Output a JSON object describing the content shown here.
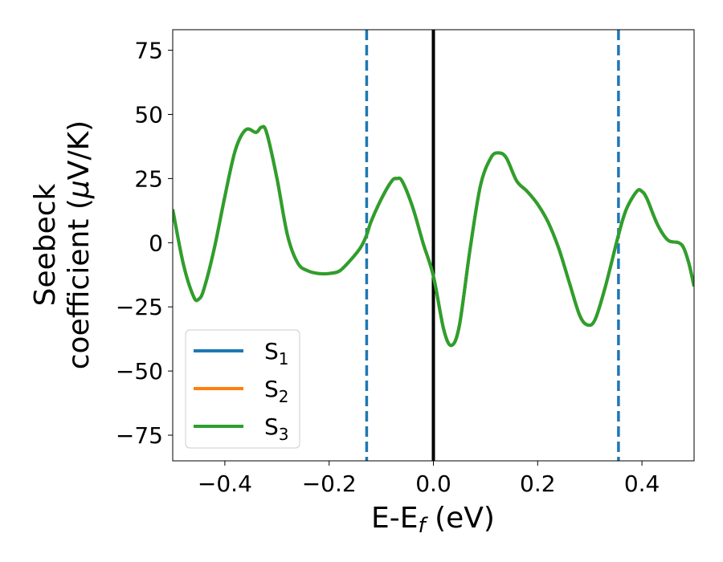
{
  "chart_data": {
    "type": "line",
    "xlabel_main": "E-E",
    "xlabel_sub": "f",
    "xlabel_tail": " (eV)",
    "ylabel_line1": "Seebeck",
    "ylabel_line2": "coefficient  (",
    "ylabel_mu": "μ",
    "ylabel_tail": "V/K)",
    "xlim": [
      -0.5,
      0.5
    ],
    "ylim": [
      -85,
      83
    ],
    "xticks": [
      -0.4,
      -0.2,
      0.0,
      0.2,
      0.4
    ],
    "xtick_labels": [
      "−0.4",
      "−0.2",
      "0.0",
      "0.2",
      "0.4"
    ],
    "yticks": [
      75,
      50,
      25,
      0,
      -25,
      -50,
      -75
    ],
    "ytick_labels": [
      "75",
      "50",
      "25",
      "0",
      "−25",
      "−50",
      "−75"
    ],
    "grid": false,
    "legend_placement": "lower-left",
    "vertical_lines": [
      {
        "x": -0.128,
        "style": "dashed",
        "color": "#1f77b4"
      },
      {
        "x": 0.0,
        "style": "solid",
        "color": "#000000"
      },
      {
        "x": 0.355,
        "style": "dashed",
        "color": "#1f77b4"
      }
    ],
    "x": [
      -0.5,
      -0.48,
      -0.46,
      -0.45,
      -0.44,
      -0.42,
      -0.4,
      -0.38,
      -0.36,
      -0.34,
      -0.33,
      -0.32,
      -0.3,
      -0.28,
      -0.26,
      -0.24,
      -0.22,
      -0.2,
      -0.18,
      -0.16,
      -0.14,
      -0.128,
      -0.12,
      -0.1,
      -0.08,
      -0.07,
      -0.06,
      -0.04,
      -0.02,
      0.0,
      0.02,
      0.035,
      0.05,
      0.07,
      0.09,
      0.11,
      0.125,
      0.14,
      0.16,
      0.18,
      0.2,
      0.22,
      0.24,
      0.26,
      0.28,
      0.295,
      0.31,
      0.33,
      0.355,
      0.37,
      0.39,
      0.4,
      0.41,
      0.43,
      0.45,
      0.47,
      0.48,
      0.49,
      0.5
    ],
    "series": [
      {
        "name": "S1",
        "color": "#1f77b4",
        "values": [
          13,
          -8,
          -21,
          -22,
          -18,
          -2,
          18,
          36,
          44,
          43,
          45,
          43,
          25,
          3,
          -8,
          -11,
          -12,
          -12,
          -11,
          -7,
          -2,
          3,
          8,
          17,
          24,
          25,
          24,
          14,
          0,
          -13,
          -34,
          -40,
          -32,
          -3,
          22,
          33,
          35,
          33,
          24,
          20,
          15,
          8,
          -2,
          -15,
          -28,
          -32,
          -30,
          -17,
          3,
          13,
          20,
          20,
          17,
          7,
          1,
          0,
          -2,
          -8,
          -17
        ]
      },
      {
        "name": "S2",
        "color": "#ff7f0e",
        "values": [
          13,
          -8,
          -21,
          -22,
          -18,
          -2,
          18,
          36,
          44,
          43,
          45,
          43,
          25,
          3,
          -8,
          -11,
          -12,
          -12,
          -11,
          -7,
          -2,
          3,
          8,
          17,
          24,
          25,
          24,
          14,
          0,
          -13,
          -34,
          -40,
          -32,
          -3,
          22,
          33,
          35,
          33,
          24,
          20,
          15,
          8,
          -2,
          -15,
          -28,
          -32,
          -30,
          -17,
          3,
          13,
          20,
          20,
          17,
          7,
          1,
          0,
          -2,
          -8,
          -17
        ]
      },
      {
        "name": "S3",
        "color": "#2ca02c",
        "values": [
          13,
          -8,
          -21,
          -22,
          -18,
          -2,
          18,
          36,
          44,
          43,
          45,
          43,
          25,
          3,
          -8,
          -11,
          -12,
          -12,
          -11,
          -7,
          -2,
          3,
          8,
          17,
          24,
          25,
          24,
          14,
          0,
          -13,
          -34,
          -40,
          -32,
          -3,
          22,
          33,
          35,
          33,
          24,
          20,
          15,
          8,
          -2,
          -15,
          -28,
          -32,
          -30,
          -17,
          3,
          13,
          20,
          20,
          17,
          7,
          1,
          0,
          -2,
          -8,
          -17
        ]
      }
    ],
    "legend": [
      {
        "main": "S",
        "sub": "1",
        "color": "#1f77b4"
      },
      {
        "main": "S",
        "sub": "2",
        "color": "#ff7f0e"
      },
      {
        "main": "S",
        "sub": "3",
        "color": "#2ca02c"
      }
    ]
  }
}
